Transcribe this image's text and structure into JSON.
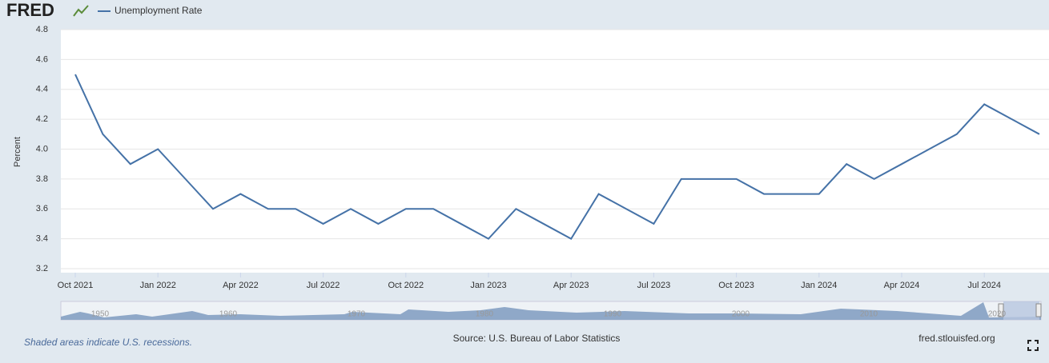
{
  "brand": "FRED",
  "chart_data": {
    "type": "line",
    "title": null,
    "ylabel": "Percent",
    "categories": [
      "Oct 2021",
      null,
      null,
      "Jan 2022",
      null,
      null,
      "Apr 2022",
      null,
      null,
      "Jul 2022",
      null,
      null,
      "Oct 2022",
      null,
      null,
      "Jan 2023",
      null,
      null,
      "Apr 2023",
      null,
      null,
      "Jul 2023",
      null,
      null,
      "Oct 2023",
      null,
      null,
      "Jan 2024",
      null,
      null,
      "Apr 2024",
      null,
      null,
      "Jul 2024",
      null,
      null
    ],
    "series": [
      {
        "name": "Unemployment Rate",
        "color": "#4572a7",
        "values": [
          4.5,
          4.1,
          3.9,
          4.0,
          3.8,
          3.6,
          3.7,
          3.6,
          3.6,
          3.5,
          3.6,
          3.5,
          3.6,
          3.6,
          3.5,
          3.4,
          3.6,
          3.5,
          3.4,
          3.7,
          3.6,
          3.5,
          3.8,
          3.8,
          3.8,
          3.7,
          3.7,
          3.7,
          3.9,
          3.8,
          3.9,
          4.0,
          4.1,
          4.3,
          4.2,
          4.1
        ]
      }
    ],
    "ylim": [
      3.2,
      4.8
    ],
    "yticks": [
      3.2,
      3.4,
      3.6,
      3.8,
      {
        "value": 4.0,
        "label": "4.0"
      },
      4.2,
      4.4,
      4.6,
      4.8
    ],
    "grid": true,
    "navigator_labels": [
      "1950",
      "1960",
      "1970",
      "1980",
      "1990",
      "2000",
      "2010",
      "2020"
    ]
  },
  "footer": {
    "note": "Shaded areas indicate U.S. recessions.",
    "source": "Source: U.S. Bureau of Labor Statistics",
    "site": "fred.stlouisfed.org"
  }
}
